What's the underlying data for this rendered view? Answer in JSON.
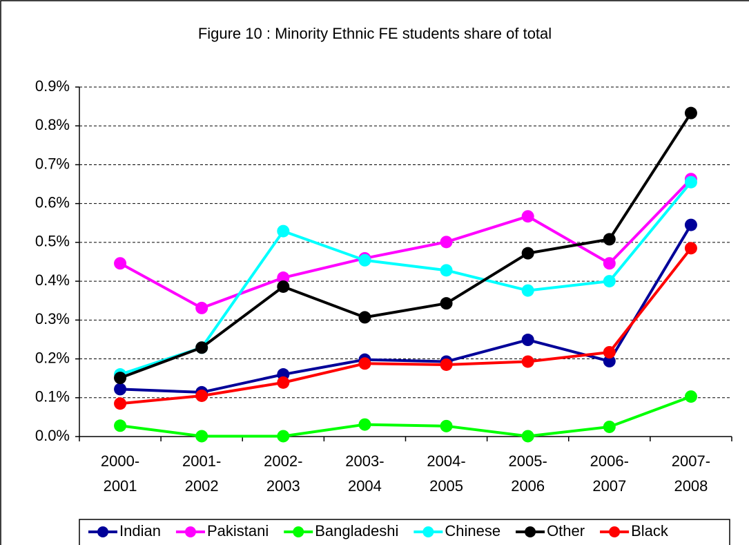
{
  "chart_data": {
    "type": "line",
    "title": "Figure 10 : Minority Ethnic FE students share of total",
    "categories": [
      "2000-2001",
      "2001-2002",
      "2002-2003",
      "2003-2004",
      "2004-2005",
      "2005-2006",
      "2006-2007",
      "2007-2008"
    ],
    "series": [
      {
        "name": "Indian",
        "color": "#000099",
        "values": [
          0.122,
          0.114,
          0.16,
          0.198,
          0.193,
          0.249,
          0.194,
          0.545
        ]
      },
      {
        "name": "Pakistani",
        "color": "#ff00ff",
        "values": [
          0.446,
          0.331,
          0.409,
          0.459,
          0.501,
          0.567,
          0.446,
          0.663
        ]
      },
      {
        "name": "Bangladeshi",
        "color": "#00ff00",
        "values": [
          0.028,
          0.001,
          0.001,
          0.031,
          0.027,
          0.001,
          0.025,
          0.103
        ]
      },
      {
        "name": "Chinese",
        "color": "#00ffff",
        "values": [
          0.16,
          0.229,
          0.529,
          0.454,
          0.428,
          0.376,
          0.4,
          0.655
        ]
      },
      {
        "name": "Other",
        "color": "#000000",
        "values": [
          0.151,
          0.229,
          0.386,
          0.307,
          0.343,
          0.472,
          0.508,
          0.833
        ]
      },
      {
        "name": "Black",
        "color": "#ff0000",
        "values": [
          0.085,
          0.105,
          0.139,
          0.188,
          0.185,
          0.193,
          0.217,
          0.485
        ]
      }
    ],
    "ylim": [
      0,
      0.9
    ],
    "yticks": [
      {
        "value": 0,
        "label": "0.0%"
      },
      {
        "value": 0.1,
        "label": "0.1%"
      },
      {
        "value": 0.2,
        "label": "0.2%"
      },
      {
        "value": 0.3,
        "label": "0.3%"
      },
      {
        "value": 0.4,
        "label": "0.4%"
      },
      {
        "value": 0.5,
        "label": "0.5%"
      },
      {
        "value": 0.6,
        "label": "0.6%"
      },
      {
        "value": 0.7,
        "label": "0.7%"
      },
      {
        "value": 0.8,
        "label": "0.8%"
      },
      {
        "value": 0.9,
        "label": "0.9%"
      }
    ],
    "grid": true,
    "legend": "bottom"
  }
}
